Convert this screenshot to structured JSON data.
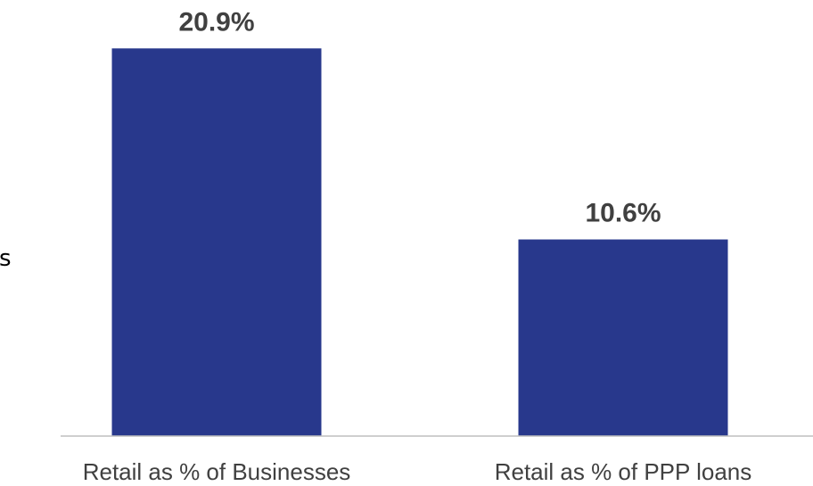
{
  "stray_text": "s",
  "chart_data": {
    "type": "bar",
    "categories": [
      "Retail as % of Businesses",
      "Retail as % of PPP loans"
    ],
    "values": [
      20.9,
      10.6
    ],
    "data_labels": [
      "20.9%",
      "10.6%"
    ],
    "unit": "%",
    "title": "",
    "xlabel": "",
    "ylabel": "",
    "ylim": [
      0,
      22
    ],
    "grid": false,
    "legend": "none",
    "colors": {
      "bar": "#28388c",
      "axis": "#bfbfbf",
      "text": "#404040"
    }
  }
}
